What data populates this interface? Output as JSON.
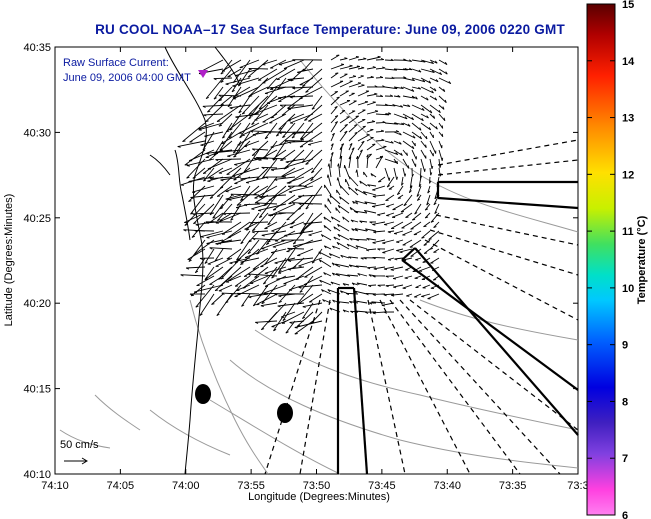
{
  "title": "RU COOL  NOAA–17  Sea Surface Temperature:  June 09, 2006 0220 GMT",
  "legend_label": "Raw Surface Current:",
  "legend_time": "June 09, 2006 04:00 GMT",
  "scale_label": "50 cm/s",
  "xlabel": "Longitude (Degrees:Minutes)",
  "ylabel": "Latitude (Degrees:Minutes)",
  "x_ticks": [
    "74:10",
    "74:05",
    "74:00",
    "73:55",
    "73:50",
    "73:45",
    "73:40",
    "73:35",
    "73:3"
  ],
  "y_ticks": [
    "40:35",
    "40:30",
    "40:25",
    "40:20",
    "40:15",
    "40:10"
  ],
  "colorbar": {
    "label": "Temperature (°C)",
    "ticks": [
      "15",
      "14",
      "13",
      "12",
      "11",
      "10",
      "9",
      "8",
      "7",
      "6"
    ]
  }
}
